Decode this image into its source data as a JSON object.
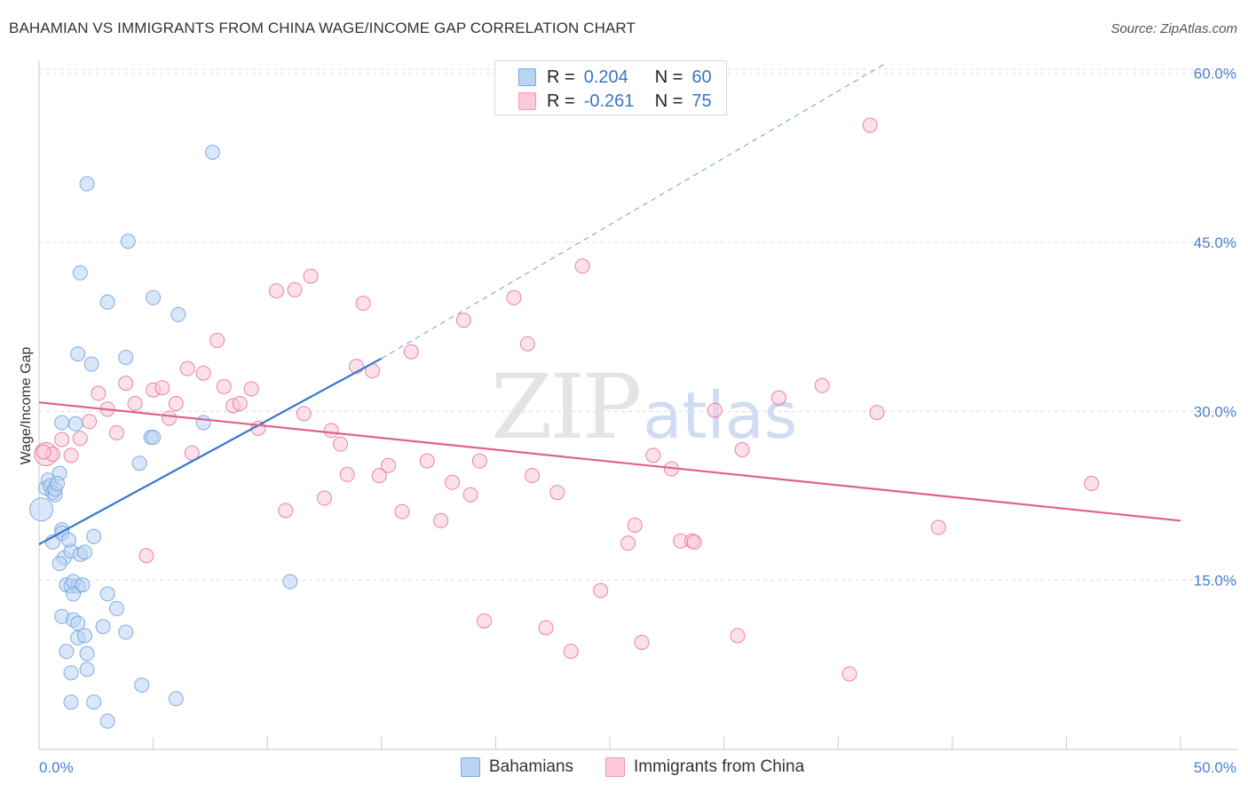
{
  "header": {
    "title": "BAHAMIAN VS IMMIGRANTS FROM CHINA WAGE/INCOME GAP CORRELATION CHART",
    "source": "Source: ZipAtlas.com"
  },
  "watermark": {
    "part_a": "ZIP",
    "part_b": "atlas"
  },
  "legend": {
    "rows": [
      {
        "r_label": "R =",
        "r_value": "0.204",
        "n_label": "N =",
        "n_value": "60",
        "color": "#b9d3f4",
        "border": "#7aa6e0"
      },
      {
        "r_label": "R =",
        "r_value": "-0.261",
        "n_label": "N =",
        "n_value": "75",
        "color": "#fbc9d8",
        "border": "#ee9ab5"
      }
    ]
  },
  "bottom_legend": {
    "items": [
      {
        "label": "Bahamians",
        "color": "#b9d3f4",
        "border": "#7aa6e0"
      },
      {
        "label": "Immigrants from China",
        "color": "#fbc9d8",
        "border": "#ee9ab5"
      }
    ]
  },
  "chart_data": {
    "type": "scatter",
    "title": "BAHAMIAN VS IMMIGRANTS FROM CHINA WAGE/INCOME GAP CORRELATION CHART",
    "xlabel": "",
    "ylabel": "Wage/Income Gap",
    "xlim": [
      0,
      50
    ],
    "ylim": [
      0,
      61
    ],
    "x_tick_labels": [
      "0.0%",
      "50.0%"
    ],
    "y_ticks": [
      15,
      30,
      45,
      60
    ],
    "y_tick_labels": [
      "15.0%",
      "30.0%",
      "45.0%",
      "60.0%"
    ],
    "grid": true,
    "legend_position": "top-center",
    "series": [
      {
        "name": "Bahamians",
        "color": "#6fa0df",
        "fill": "#b9d3f4",
        "trend": {
          "x": [
            0.0,
            15.0
          ],
          "y": [
            18.2,
            34.7
          ],
          "extend_to": [
            37.0,
            60.8
          ]
        },
        "points": [
          [
            0.1,
            21.3
          ],
          [
            0.3,
            23.2
          ],
          [
            0.4,
            23.9
          ],
          [
            0.5,
            23.4
          ],
          [
            0.6,
            22.8
          ],
          [
            0.7,
            22.6
          ],
          [
            0.9,
            24.5
          ],
          [
            0.6,
            18.4
          ],
          [
            1.0,
            19.5
          ],
          [
            1.1,
            17.0
          ],
          [
            0.9,
            16.5
          ],
          [
            1.4,
            17.6
          ],
          [
            1.8,
            17.3
          ],
          [
            2.0,
            17.5
          ],
          [
            1.2,
            14.6
          ],
          [
            1.4,
            14.5
          ],
          [
            1.7,
            14.5
          ],
          [
            1.5,
            14.9
          ],
          [
            1.5,
            13.8
          ],
          [
            1.9,
            14.6
          ],
          [
            1.0,
            11.8
          ],
          [
            1.5,
            11.5
          ],
          [
            1.7,
            11.2
          ],
          [
            1.7,
            9.9
          ],
          [
            2.0,
            10.1
          ],
          [
            1.2,
            8.7
          ],
          [
            2.1,
            8.5
          ],
          [
            1.4,
            6.8
          ],
          [
            2.1,
            7.1
          ],
          [
            1.4,
            4.2
          ],
          [
            2.4,
            4.2
          ],
          [
            3.0,
            2.5
          ],
          [
            2.4,
            18.9
          ],
          [
            3.0,
            13.8
          ],
          [
            2.8,
            10.9
          ],
          [
            3.4,
            12.5
          ],
          [
            3.8,
            10.4
          ],
          [
            4.5,
            5.7
          ],
          [
            6.0,
            4.5
          ],
          [
            1.6,
            28.9
          ],
          [
            1.7,
            35.1
          ],
          [
            2.3,
            34.2
          ],
          [
            3.8,
            34.8
          ],
          [
            4.4,
            25.4
          ],
          [
            4.9,
            27.7
          ],
          [
            5.0,
            27.7
          ],
          [
            5.0,
            40.1
          ],
          [
            6.1,
            38.6
          ],
          [
            7.2,
            29.0
          ],
          [
            11.0,
            14.9
          ],
          [
            3.0,
            39.7
          ],
          [
            3.9,
            45.1
          ],
          [
            1.8,
            42.3
          ],
          [
            2.1,
            50.2
          ],
          [
            7.6,
            53.0
          ],
          [
            1.0,
            29.0
          ],
          [
            0.7,
            23.1
          ],
          [
            0.8,
            23.6
          ],
          [
            1.0,
            19.2
          ],
          [
            1.3,
            18.6
          ]
        ]
      },
      {
        "name": "Immigrants from China",
        "color": "#e56f9a",
        "fill": "#fbc9d8",
        "trend": {
          "x": [
            0.0,
            50.0
          ],
          "y": [
            30.8,
            20.3
          ]
        },
        "points": [
          [
            0.3,
            26.2
          ],
          [
            0.6,
            26.2
          ],
          [
            1.0,
            27.5
          ],
          [
            1.4,
            26.1
          ],
          [
            1.8,
            27.6
          ],
          [
            2.2,
            29.1
          ],
          [
            2.6,
            31.6
          ],
          [
            3.0,
            30.2
          ],
          [
            3.4,
            28.1
          ],
          [
            3.8,
            32.5
          ],
          [
            4.2,
            30.7
          ],
          [
            4.7,
            17.2
          ],
          [
            5.0,
            31.9
          ],
          [
            5.4,
            32.1
          ],
          [
            5.7,
            29.4
          ],
          [
            6.0,
            30.7
          ],
          [
            6.5,
            33.8
          ],
          [
            6.7,
            26.3
          ],
          [
            7.2,
            33.4
          ],
          [
            7.8,
            36.3
          ],
          [
            8.1,
            32.2
          ],
          [
            8.5,
            30.5
          ],
          [
            8.8,
            30.7
          ],
          [
            9.3,
            32.0
          ],
          [
            9.6,
            28.5
          ],
          [
            10.4,
            40.7
          ],
          [
            10.8,
            21.2
          ],
          [
            11.2,
            40.8
          ],
          [
            11.6,
            29.8
          ],
          [
            11.9,
            42.0
          ],
          [
            12.5,
            22.3
          ],
          [
            12.8,
            28.3
          ],
          [
            13.2,
            27.1
          ],
          [
            13.5,
            24.4
          ],
          [
            13.9,
            34.0
          ],
          [
            14.2,
            39.6
          ],
          [
            14.6,
            33.6
          ],
          [
            14.9,
            24.3
          ],
          [
            15.3,
            25.2
          ],
          [
            15.9,
            21.1
          ],
          [
            16.3,
            35.3
          ],
          [
            17.0,
            25.6
          ],
          [
            17.6,
            20.3
          ],
          [
            18.1,
            23.7
          ],
          [
            18.6,
            38.1
          ],
          [
            18.9,
            22.6
          ],
          [
            19.3,
            25.6
          ],
          [
            19.5,
            11.4
          ],
          [
            20.8,
            40.1
          ],
          [
            21.4,
            36.0
          ],
          [
            21.6,
            24.3
          ],
          [
            22.2,
            10.8
          ],
          [
            22.7,
            22.8
          ],
          [
            23.3,
            8.7
          ],
          [
            23.8,
            42.9
          ],
          [
            24.6,
            14.1
          ],
          [
            25.8,
            18.3
          ],
          [
            26.1,
            19.9
          ],
          [
            26.4,
            9.5
          ],
          [
            26.9,
            26.1
          ],
          [
            27.7,
            24.9
          ],
          [
            28.1,
            18.5
          ],
          [
            28.6,
            18.5
          ],
          [
            28.7,
            18.4
          ],
          [
            29.6,
            30.1
          ],
          [
            30.6,
            10.1
          ],
          [
            30.8,
            26.6
          ],
          [
            32.4,
            31.2
          ],
          [
            34.3,
            32.3
          ],
          [
            35.5,
            6.7
          ],
          [
            36.4,
            55.4
          ],
          [
            36.7,
            29.9
          ],
          [
            39.4,
            19.7
          ],
          [
            46.1,
            23.6
          ],
          [
            0.2,
            26.4
          ]
        ]
      }
    ]
  }
}
